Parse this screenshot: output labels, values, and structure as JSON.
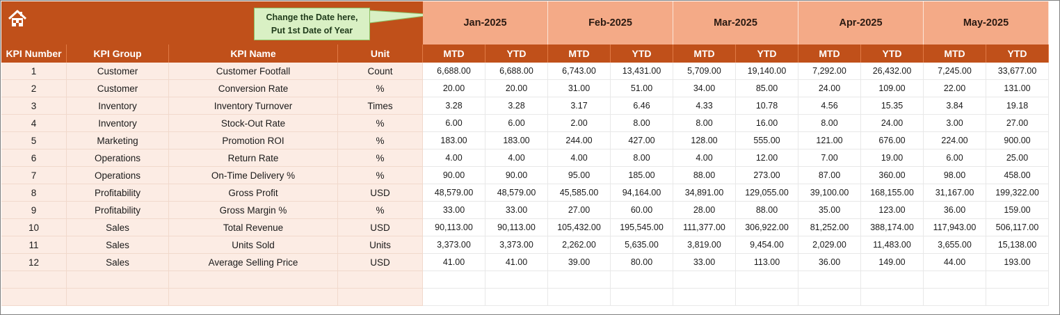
{
  "callout": {
    "line1": "Change the Date here,",
    "line2": "Put 1st Date of Year"
  },
  "months": [
    "Jan-2025",
    "Feb-2025",
    "Mar-2025",
    "Apr-2025",
    "May-2025"
  ],
  "headers": {
    "kpi_number": "KPI Number",
    "kpi_group": "KPI Group",
    "kpi_name": "KPI Name",
    "unit": "Unit",
    "mtd": "MTD",
    "ytd": "YTD"
  },
  "colors": {
    "banner": "#c0501a",
    "month_fill": "#f4aa87",
    "info_fill": "#fcece4",
    "callout_fill": "#d9f0c4"
  },
  "icons": {
    "home": "home-icon"
  },
  "rows": [
    {
      "num": "1",
      "group": "Customer",
      "name": "Customer Footfall",
      "unit": "Count",
      "values": [
        "6,688.00",
        "6,688.00",
        "6,743.00",
        "13,431.00",
        "5,709.00",
        "19,140.00",
        "7,292.00",
        "26,432.00",
        "7,245.00",
        "33,677.00"
      ]
    },
    {
      "num": "2",
      "group": "Customer",
      "name": "Conversion Rate",
      "unit": "%",
      "values": [
        "20.00",
        "20.00",
        "31.00",
        "51.00",
        "34.00",
        "85.00",
        "24.00",
        "109.00",
        "22.00",
        "131.00"
      ]
    },
    {
      "num": "3",
      "group": "Inventory",
      "name": "Inventory Turnover",
      "unit": "Times",
      "values": [
        "3.28",
        "3.28",
        "3.17",
        "6.46",
        "4.33",
        "10.78",
        "4.56",
        "15.35",
        "3.84",
        "19.18"
      ]
    },
    {
      "num": "4",
      "group": "Inventory",
      "name": "Stock-Out Rate",
      "unit": "%",
      "values": [
        "6.00",
        "6.00",
        "2.00",
        "8.00",
        "8.00",
        "16.00",
        "8.00",
        "24.00",
        "3.00",
        "27.00"
      ]
    },
    {
      "num": "5",
      "group": "Marketing",
      "name": "Promotion ROI",
      "unit": "%",
      "values": [
        "183.00",
        "183.00",
        "244.00",
        "427.00",
        "128.00",
        "555.00",
        "121.00",
        "676.00",
        "224.00",
        "900.00"
      ]
    },
    {
      "num": "6",
      "group": "Operations",
      "name": "Return Rate",
      "unit": "%",
      "values": [
        "4.00",
        "4.00",
        "4.00",
        "8.00",
        "4.00",
        "12.00",
        "7.00",
        "19.00",
        "6.00",
        "25.00"
      ]
    },
    {
      "num": "7",
      "group": "Operations",
      "name": "On-Time Delivery %",
      "unit": "%",
      "values": [
        "90.00",
        "90.00",
        "95.00",
        "185.00",
        "88.00",
        "273.00",
        "87.00",
        "360.00",
        "98.00",
        "458.00"
      ]
    },
    {
      "num": "8",
      "group": "Profitability",
      "name": "Gross Profit",
      "unit": "USD",
      "values": [
        "48,579.00",
        "48,579.00",
        "45,585.00",
        "94,164.00",
        "34,891.00",
        "129,055.00",
        "39,100.00",
        "168,155.00",
        "31,167.00",
        "199,322.00"
      ]
    },
    {
      "num": "9",
      "group": "Profitability",
      "name": "Gross Margin %",
      "unit": "%",
      "values": [
        "33.00",
        "33.00",
        "27.00",
        "60.00",
        "28.00",
        "88.00",
        "35.00",
        "123.00",
        "36.00",
        "159.00"
      ]
    },
    {
      "num": "10",
      "group": "Sales",
      "name": "Total Revenue",
      "unit": "USD",
      "values": [
        "90,113.00",
        "90,113.00",
        "105,432.00",
        "195,545.00",
        "111,377.00",
        "306,922.00",
        "81,252.00",
        "388,174.00",
        "117,943.00",
        "506,117.00"
      ]
    },
    {
      "num": "11",
      "group": "Sales",
      "name": "Units Sold",
      "unit": "Units",
      "values": [
        "3,373.00",
        "3,373.00",
        "2,262.00",
        "5,635.00",
        "3,819.00",
        "9,454.00",
        "2,029.00",
        "11,483.00",
        "3,655.00",
        "15,138.00"
      ]
    },
    {
      "num": "12",
      "group": "Sales",
      "name": "Average Selling Price",
      "unit": "USD",
      "values": [
        "41.00",
        "41.00",
        "39.00",
        "80.00",
        "33.00",
        "113.00",
        "36.00",
        "149.00",
        "44.00",
        "193.00"
      ]
    }
  ]
}
